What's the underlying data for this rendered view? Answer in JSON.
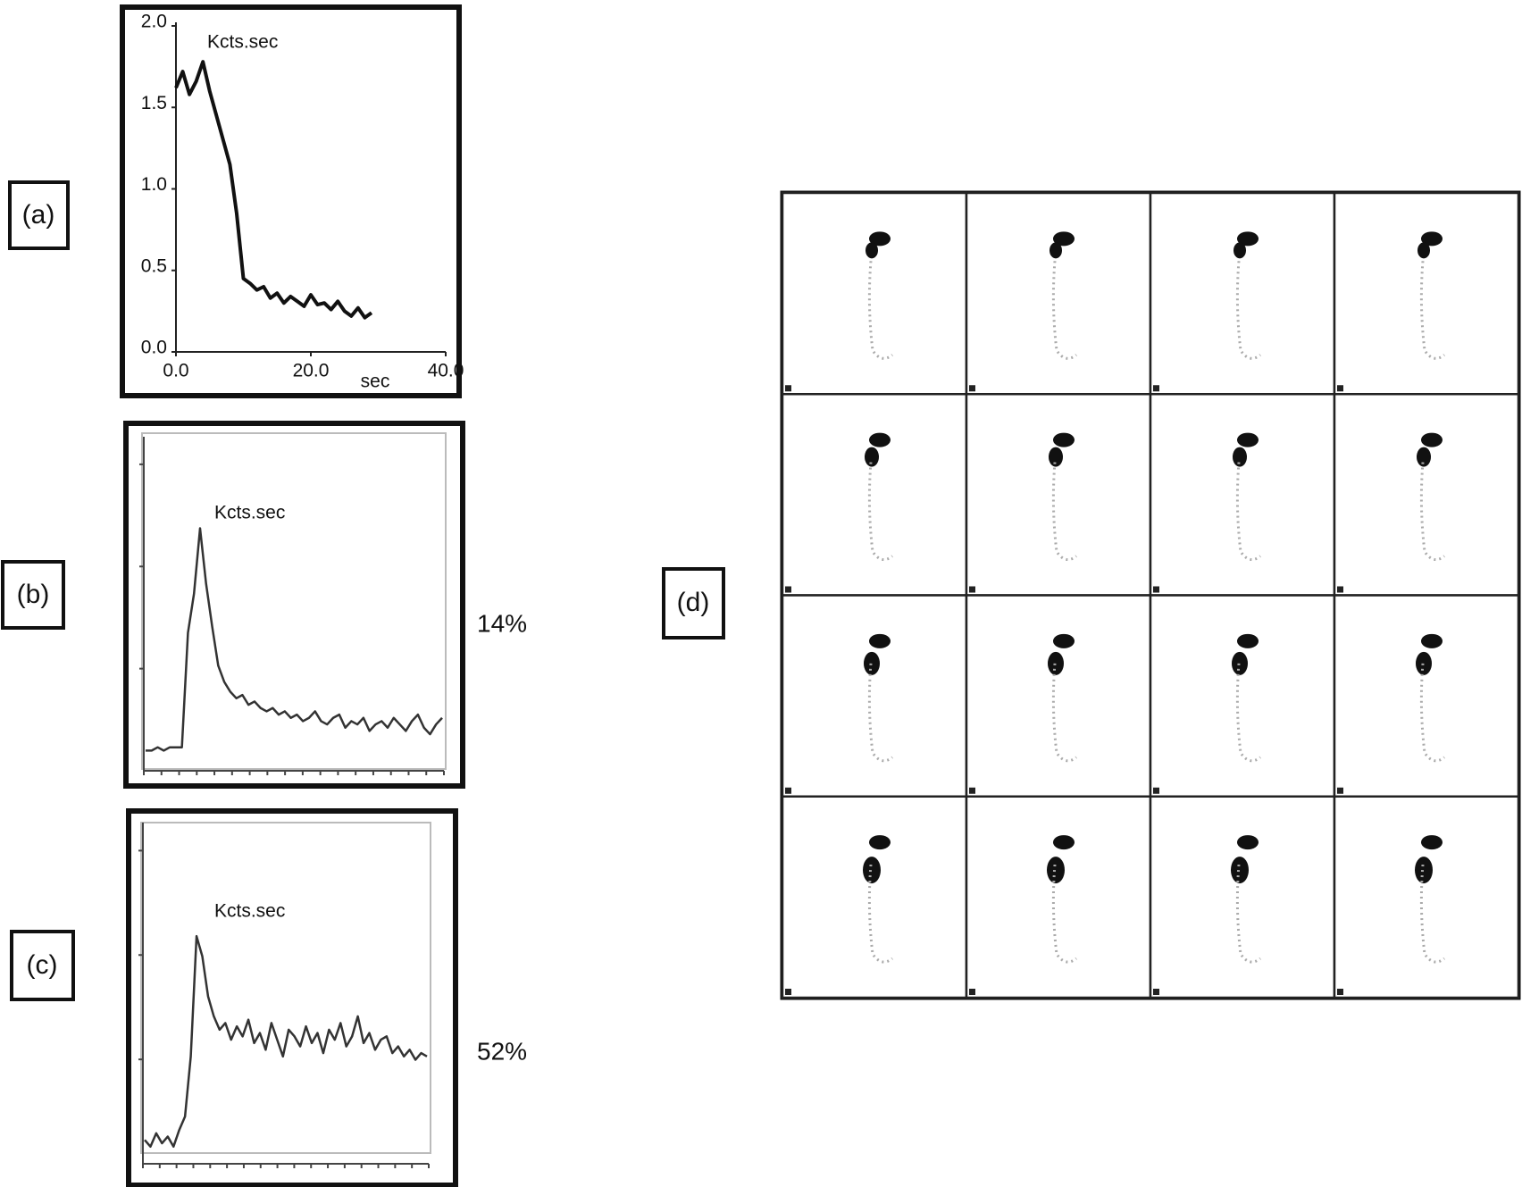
{
  "chart_data": [
    {
      "type": "line",
      "label": "(a)",
      "title": "Kcts.sec",
      "xlabel": "sec",
      "x": [
        0,
        1,
        2,
        3,
        4,
        5,
        6,
        7,
        8,
        9,
        10,
        11,
        12,
        13,
        14,
        15,
        16,
        17,
        18,
        19,
        20,
        21,
        22,
        23,
        24,
        25,
        26,
        27,
        28,
        29
      ],
      "series": [
        {
          "color": "#111111",
          "values": [
            1.62,
            1.72,
            1.58,
            1.66,
            1.78,
            1.6,
            1.45,
            1.3,
            1.15,
            0.85,
            0.45,
            0.42,
            0.38,
            0.4,
            0.33,
            0.36,
            0.3,
            0.34,
            0.31,
            0.28,
            0.35,
            0.29,
            0.3,
            0.26,
            0.31,
            0.25,
            0.22,
            0.27,
            0.21,
            0.24
          ]
        }
      ],
      "xlim": [
        0,
        40
      ],
      "ylim": [
        0,
        2
      ],
      "xticks": [
        {
          "value": 0,
          "label": "0.0"
        },
        {
          "value": 20,
          "label": "20.0"
        },
        {
          "value": 40,
          "label": "40.0"
        }
      ],
      "yticks": [
        {
          "value": 0,
          "label": "0.0"
        },
        {
          "value": 0.5,
          "label": "0.5"
        },
        {
          "value": 1,
          "label": "1.0"
        },
        {
          "value": 1.5,
          "label": "1.5"
        },
        {
          "value": 2,
          "label": "2.0"
        }
      ]
    },
    {
      "type": "line",
      "label": "(b)",
      "title": "Kcts.sec",
      "annotation": "14%",
      "color": "#333333",
      "ylim": [
        0,
        100
      ],
      "values": [
        4,
        4,
        5,
        4,
        5,
        5,
        5,
        40,
        52,
        72,
        55,
        42,
        30,
        25,
        22,
        20,
        21,
        18,
        19,
        17,
        16,
        17,
        15,
        16,
        14,
        15,
        13,
        14,
        16,
        13,
        12,
        14,
        15,
        11,
        13,
        12,
        14,
        10,
        12,
        13,
        11,
        14,
        12,
        10,
        13,
        15,
        11,
        9,
        12,
        14
      ]
    },
    {
      "type": "line",
      "label": "(c)",
      "title": "Kcts.sec",
      "annotation": "52%",
      "color": "#333333",
      "ylim": [
        0,
        100
      ],
      "values": [
        5,
        3,
        7,
        4,
        6,
        3,
        8,
        12,
        30,
        66,
        60,
        48,
        42,
        38,
        40,
        35,
        39,
        36,
        41,
        34,
        37,
        32,
        40,
        35,
        30,
        38,
        36,
        33,
        39,
        34,
        37,
        31,
        38,
        35,
        40,
        33,
        36,
        42,
        34,
        37,
        32,
        35,
        36,
        31,
        33,
        30,
        32,
        29,
        31,
        30
      ]
    }
  ],
  "image_panel": {
    "label": "(d)"
  }
}
